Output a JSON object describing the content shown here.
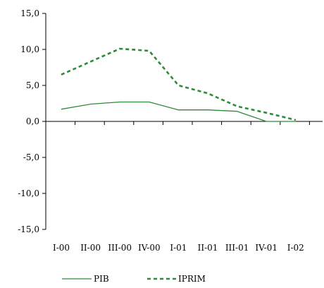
{
  "chart_data": {
    "type": "line",
    "categories": [
      "I-00",
      "II-00",
      "III-00",
      "IV-00",
      "I-01",
      "II-01",
      "III-01",
      "IV-01",
      "I-02"
    ],
    "y_tick_labels": [
      "15,0",
      "10,0",
      "5,0",
      "0,0",
      "-5,0",
      "-10,0",
      "-15,0"
    ],
    "ylim": [
      -15,
      15
    ],
    "grid": false,
    "legend_position": "bottom",
    "series": [
      {
        "name": "PIB",
        "style": "solid",
        "color": "#2e8b3a",
        "values": [
          1.7,
          2.4,
          2.7,
          2.7,
          1.6,
          1.6,
          1.4,
          0.0,
          0.0
        ]
      },
      {
        "name": "IPRIM",
        "style": "dashed",
        "color": "#2e8b3a",
        "values": [
          6.5,
          8.3,
          10.1,
          9.8,
          5.0,
          3.9,
          2.1,
          1.2,
          0.2
        ]
      }
    ]
  }
}
